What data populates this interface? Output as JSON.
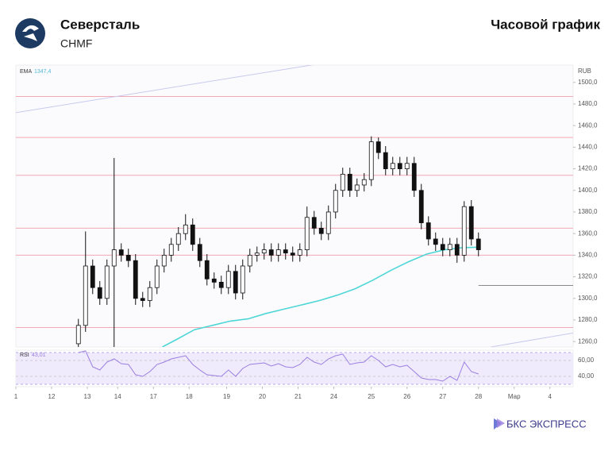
{
  "chart_data": {
    "type": "candlestick",
    "title": "Северсталь",
    "subtitle": "CHMF",
    "period": "Часовой график",
    "currency": "RUB",
    "x": [
      1.75,
      1.95,
      2.15,
      2.35,
      2.55,
      2.75,
      2.95,
      3.15,
      3.35,
      3.55,
      3.75,
      3.95,
      4.15,
      4.35,
      4.55,
      4.75,
      4.95,
      5.15,
      5.35,
      5.55,
      5.75,
      5.95,
      6.15,
      6.35,
      6.55,
      6.75,
      6.95,
      7.15,
      7.35,
      7.55,
      7.75,
      7.95,
      8.15,
      8.35,
      8.55,
      8.75,
      8.95,
      9.15,
      9.35,
      9.55,
      9.75,
      9.95,
      10.15,
      10.35,
      10.55,
      10.75,
      10.95,
      11.15,
      11.35,
      11.55,
      11.75,
      11.95,
      12.15,
      12.35,
      12.55,
      12.75,
      12.95
    ],
    "open": [
      1258,
      1275,
      1330,
      1310,
      1300,
      1330,
      1345,
      1340,
      1335,
      1300,
      1298,
      1310,
      1330,
      1340,
      1350,
      1360,
      1368,
      1350,
      1335,
      1318,
      1315,
      1310,
      1325,
      1305,
      1330,
      1340,
      1342,
      1345,
      1340,
      1345,
      1342,
      1340,
      1345,
      1375,
      1365,
      1360,
      1380,
      1400,
      1415,
      1400,
      1405,
      1410,
      1445,
      1435,
      1420,
      1425,
      1420,
      1425,
      1400,
      1370,
      1355,
      1350,
      1345,
      1350,
      1340,
      1385,
      1355
    ],
    "high": [
      1281,
      1362,
      1336,
      1316,
      1336,
      1430,
      1351,
      1346,
      1341,
      1306,
      1316,
      1336,
      1346,
      1356,
      1366,
      1378,
      1374,
      1356,
      1341,
      1324,
      1321,
      1331,
      1331,
      1336,
      1346,
      1348,
      1351,
      1351,
      1351,
      1351,
      1348,
      1351,
      1385,
      1381,
      1371,
      1386,
      1406,
      1421,
      1421,
      1411,
      1416,
      1450,
      1449,
      1441,
      1431,
      1431,
      1431,
      1431,
      1406,
      1376,
      1361,
      1356,
      1356,
      1356,
      1390,
      1391,
      1361
    ],
    "low": [
      1255,
      1269,
      1304,
      1294,
      1294,
      1255,
      1334,
      1329,
      1294,
      1292,
      1292,
      1304,
      1324,
      1334,
      1344,
      1354,
      1344,
      1329,
      1312,
      1309,
      1304,
      1304,
      1299,
      1299,
      1324,
      1334,
      1336,
      1334,
      1334,
      1336,
      1334,
      1334,
      1339,
      1359,
      1354,
      1354,
      1374,
      1394,
      1394,
      1394,
      1399,
      1404,
      1429,
      1414,
      1414,
      1414,
      1414,
      1394,
      1364,
      1349,
      1344,
      1339,
      1339,
      1333,
      1334,
      1349,
      1339
    ],
    "close": [
      1275,
      1330,
      1310,
      1300,
      1330,
      1345,
      1340,
      1335,
      1300,
      1298,
      1310,
      1330,
      1340,
      1350,
      1360,
      1368,
      1350,
      1335,
      1318,
      1315,
      1310,
      1325,
      1305,
      1330,
      1340,
      1342,
      1345,
      1340,
      1345,
      1342,
      1340,
      1345,
      1375,
      1365,
      1360,
      1380,
      1400,
      1415,
      1400,
      1405,
      1410,
      1445,
      1435,
      1420,
      1425,
      1420,
      1425,
      1400,
      1370,
      1355,
      1350,
      1345,
      1350,
      1340,
      1385,
      1355,
      1345
    ],
    "ylim": [
      1255,
      1516
    ],
    "yticks": [
      {
        "value": 1260,
        "label": "1260,0"
      },
      {
        "value": 1280,
        "label": "1280,0"
      },
      {
        "value": 1300,
        "label": "1300,0"
      },
      {
        "value": 1320,
        "label": "1320,0"
      },
      {
        "value": 1340,
        "label": "1340,0"
      },
      {
        "value": 1360,
        "label": "1360,0"
      },
      {
        "value": 1380,
        "label": "1380,0"
      },
      {
        "value": 1400,
        "label": "1400,0"
      },
      {
        "value": 1420,
        "label": "1420,0"
      },
      {
        "value": 1440,
        "label": "1440,0"
      },
      {
        "value": 1460,
        "label": "1460,0"
      },
      {
        "value": 1480,
        "label": "1480,0"
      },
      {
        "value": 1500,
        "label": "1500,0"
      }
    ],
    "xlim": [
      0,
      15.6
    ],
    "xticks": [
      {
        "value": 0,
        "label": "1"
      },
      {
        "value": 1,
        "label": "12"
      },
      {
        "value": 2,
        "label": "13"
      },
      {
        "value": 2.85,
        "label": "14"
      },
      {
        "value": 3.85,
        "label": "17"
      },
      {
        "value": 4.85,
        "label": "18"
      },
      {
        "value": 5.9,
        "label": "19"
      },
      {
        "value": 6.9,
        "label": "20"
      },
      {
        "value": 7.9,
        "label": "21"
      },
      {
        "value": 8.9,
        "label": "24"
      },
      {
        "value": 9.95,
        "label": "25"
      },
      {
        "value": 10.95,
        "label": "26"
      },
      {
        "value": 11.95,
        "label": "27"
      },
      {
        "value": 12.95,
        "label": "28"
      },
      {
        "value": 13.95,
        "label": "Мар"
      },
      {
        "value": 14.95,
        "label": "4"
      }
    ],
    "levels": [
      1487,
      1449,
      1414,
      1365,
      1340,
      1273
    ],
    "level_color": "#f2a9b4",
    "segments": [
      {
        "x": [
          0,
          8.45
        ],
        "y": [
          1472,
          1517
        ],
        "color": "#c9c9ee"
      },
      {
        "x": [
          13.3,
          15.6
        ],
        "y": [
          1255,
          1268
        ],
        "color": "#c9c9ee"
      },
      {
        "x": [
          12.95,
          15.6
        ],
        "y": [
          1312,
          1312
        ],
        "color": "#8a8a8a"
      }
    ],
    "ema": {
      "name": "EMA",
      "color": "#4fd6d6",
      "x": [
        4.1,
        4.5,
        5.0,
        5.5,
        6.0,
        6.5,
        7.0,
        7.5,
        8.0,
        8.5,
        9.0,
        9.5,
        10.0,
        10.5,
        11.0,
        11.5,
        12.0,
        12.5,
        12.95
      ],
      "values": [
        1255,
        1262,
        1271,
        1275,
        1279,
        1281,
        1286,
        1290,
        1294,
        1298,
        1303,
        1309,
        1317,
        1326,
        1334,
        1341,
        1345,
        1347,
        1347.4
      ],
      "last": {
        "value": 1347.4,
        "label": "1347,4"
      }
    },
    "rsi": {
      "name": "RSI",
      "color": "#9b7fe0",
      "values": [
        70,
        72,
        52,
        48,
        58,
        62,
        56,
        55,
        42,
        40,
        46,
        55,
        58,
        62,
        64,
        66,
        55,
        48,
        42,
        41,
        40,
        48,
        40,
        50,
        55,
        56,
        57,
        53,
        56,
        52,
        51,
        55,
        64,
        58,
        55,
        62,
        66,
        68,
        55,
        57,
        58,
        66,
        60,
        52,
        55,
        52,
        54,
        46,
        38,
        36,
        36,
        34,
        40,
        35,
        58,
        46,
        43.01
      ],
      "last": {
        "value": 43.01,
        "label": "43,01"
      },
      "ylim": [
        29,
        71
      ],
      "yticks": [
        {
          "value": 40,
          "label": "40,00"
        },
        {
          "value": 60,
          "label": "60,00"
        }
      ],
      "band": [
        30,
        70
      ]
    }
  },
  "footer": {
    "brand": "БКС ЭКСПРЕСС"
  }
}
